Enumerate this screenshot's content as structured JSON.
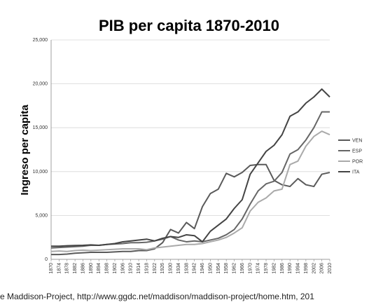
{
  "chart_data": {
    "type": "line",
    "title": "PIB per capita 1870-2010",
    "y_label": "Ingreso per capita",
    "source": "e Maddison-Project, http://www.ggdc.net/maddison/maddison-project/home.htm, 201",
    "x": [
      1870,
      1874,
      1878,
      1882,
      1886,
      1890,
      1894,
      1898,
      1902,
      1906,
      1910,
      1914,
      1918,
      1922,
      1926,
      1930,
      1934,
      1938,
      1942,
      1946,
      1950,
      1954,
      1958,
      1962,
      1966,
      1970,
      1974,
      1978,
      1982,
      1986,
      1990,
      1994,
      1998,
      2002,
      2006,
      2010
    ],
    "xlim": [
      1870,
      2010
    ],
    "xticks": [
      1870,
      1874,
      1878,
      1882,
      1886,
      1890,
      1894,
      1898,
      1902,
      1906,
      1910,
      1914,
      1918,
      1922,
      1926,
      1930,
      1934,
      1938,
      1942,
      1946,
      1950,
      1954,
      1958,
      1962,
      1966,
      1970,
      1974,
      1978,
      1982,
      1986,
      1990,
      1994,
      1998,
      2002,
      2006,
      2010
    ],
    "ylim": [
      0,
      25000
    ],
    "yticks": [
      0,
      {
        "value": 5000,
        "label": "5,000"
      },
      {
        "value": 10000,
        "label": "10,000"
      },
      {
        "value": 15000,
        "label": "15,000"
      },
      {
        "value": 20000,
        "label": "20,000"
      },
      {
        "value": 25000,
        "label": "25,000"
      }
    ],
    "grid": true,
    "legend": "right",
    "series": [
      {
        "name": "VEN",
        "color": "#5a5a5a",
        "values": [
          550,
          550,
          600,
          700,
          750,
          800,
          800,
          800,
          850,
          900,
          900,
          1000,
          1000,
          1200,
          1900,
          3400,
          3000,
          4200,
          3500,
          6000,
          7500,
          8000,
          9800,
          9400,
          9900,
          10700,
          10800,
          10800,
          9000,
          8500,
          8300,
          9200,
          8500,
          8300,
          9700,
          9900
        ]
      },
      {
        "name": "ESP",
        "color": "#666666",
        "values": [
          1300,
          1350,
          1400,
          1450,
          1500,
          1600,
          1600,
          1700,
          1750,
          1800,
          1900,
          1900,
          1950,
          2100,
          2300,
          2600,
          2200,
          2000,
          2100,
          2000,
          2200,
          2400,
          2800,
          3400,
          4600,
          6300,
          7800,
          8600,
          8900,
          9900,
          12000,
          12500,
          13600,
          15000,
          16800,
          16800
        ]
      },
      {
        "name": "POR",
        "color": "#aaaaaa",
        "values": [
          900,
          950,
          900,
          1000,
          1050,
          1000,
          1050,
          1100,
          1150,
          1200,
          1200,
          1200,
          1100,
          1300,
          1400,
          1500,
          1600,
          1700,
          1700,
          1800,
          2000,
          2200,
          2500,
          3000,
          3600,
          5500,
          6500,
          7000,
          7800,
          8000,
          10800,
          11200,
          12900,
          14000,
          14600,
          14200
        ]
      },
      {
        "name": "ITA",
        "color": "#444444",
        "values": [
          1500,
          1500,
          1550,
          1580,
          1600,
          1650,
          1600,
          1700,
          1800,
          2000,
          2100,
          2200,
          2300,
          2100,
          2400,
          2600,
          2500,
          2800,
          2700,
          2000,
          3200,
          3900,
          4600,
          5800,
          6800,
          9700,
          11000,
          12300,
          13000,
          14200,
          16300,
          16800,
          17800,
          18500,
          19400,
          18500
        ]
      }
    ]
  }
}
